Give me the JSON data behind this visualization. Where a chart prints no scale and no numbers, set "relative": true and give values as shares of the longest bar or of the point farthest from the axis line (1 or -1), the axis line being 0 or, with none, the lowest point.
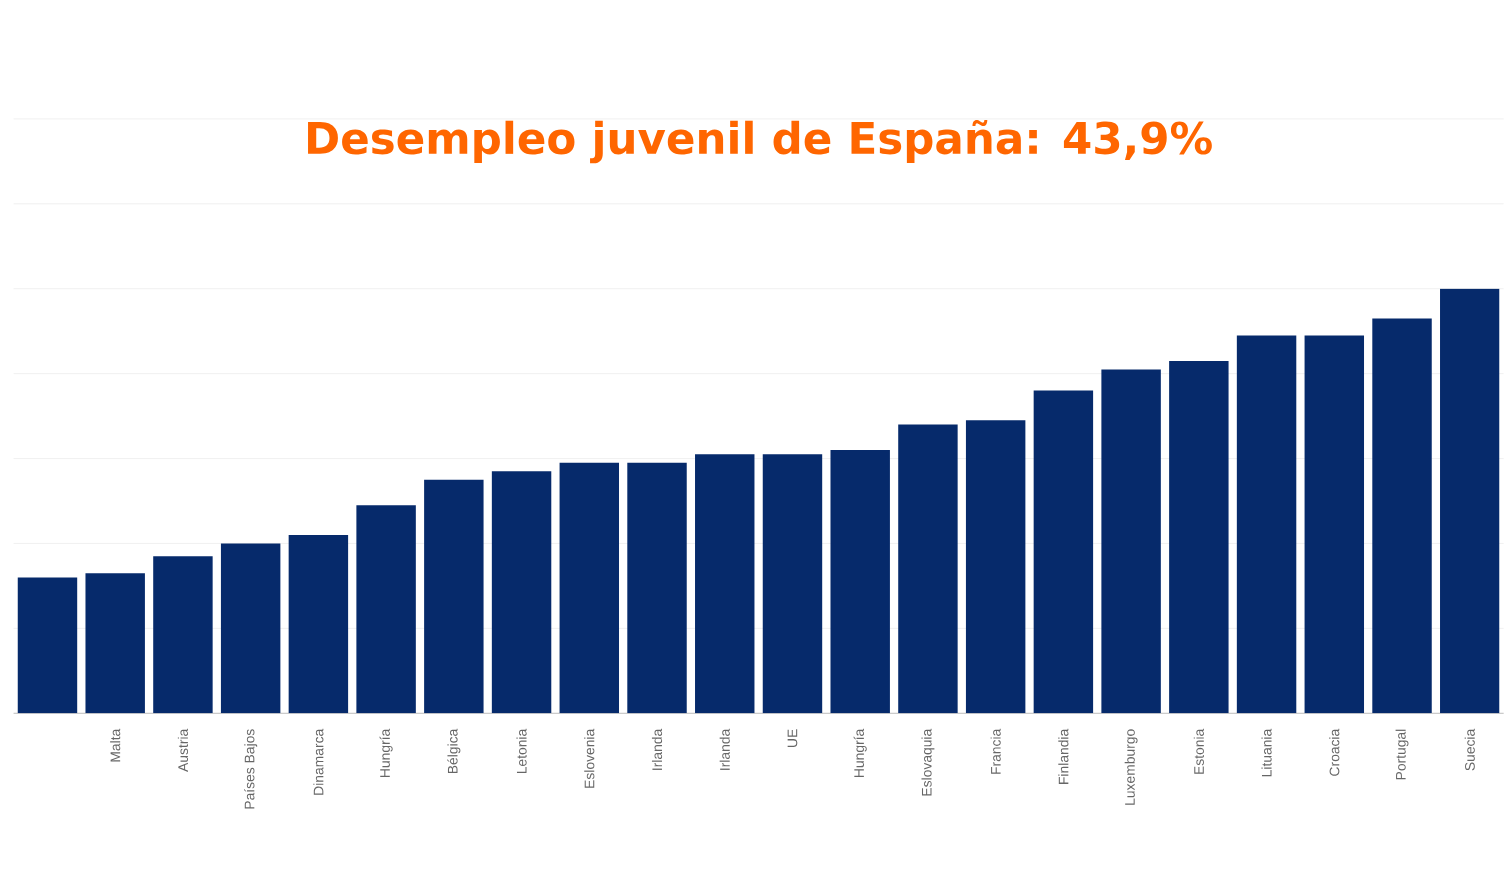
{
  "chart_data": {
    "type": "bar",
    "title": "Desempleo juvenil de España: 43,9%",
    "categories": [
      null,
      "Malta",
      "Austria",
      "Países Bajos",
      "Dinamarca",
      "Hungría",
      "Bélgica",
      "Letonia",
      "Eslovenia",
      "Irlanda",
      "Irlanda",
      "UE",
      "Hungría",
      "Eslovaquia",
      "Francia",
      "Finlandia",
      "Luxemburgo",
      "Estonia",
      "Lituania",
      "Croacia",
      "Portugal",
      "Suecia"
    ],
    "values": [
      0.32,
      0.33,
      0.37,
      0.4,
      0.42,
      0.49,
      0.55,
      0.57,
      0.59,
      0.59,
      0.61,
      0.61,
      0.62,
      0.68,
      0.69,
      0.76,
      0.81,
      0.83,
      0.89,
      0.89,
      0.93,
      1.0
    ],
    "color": "#062a6b",
    "relative": true,
    "grid": "y"
  }
}
